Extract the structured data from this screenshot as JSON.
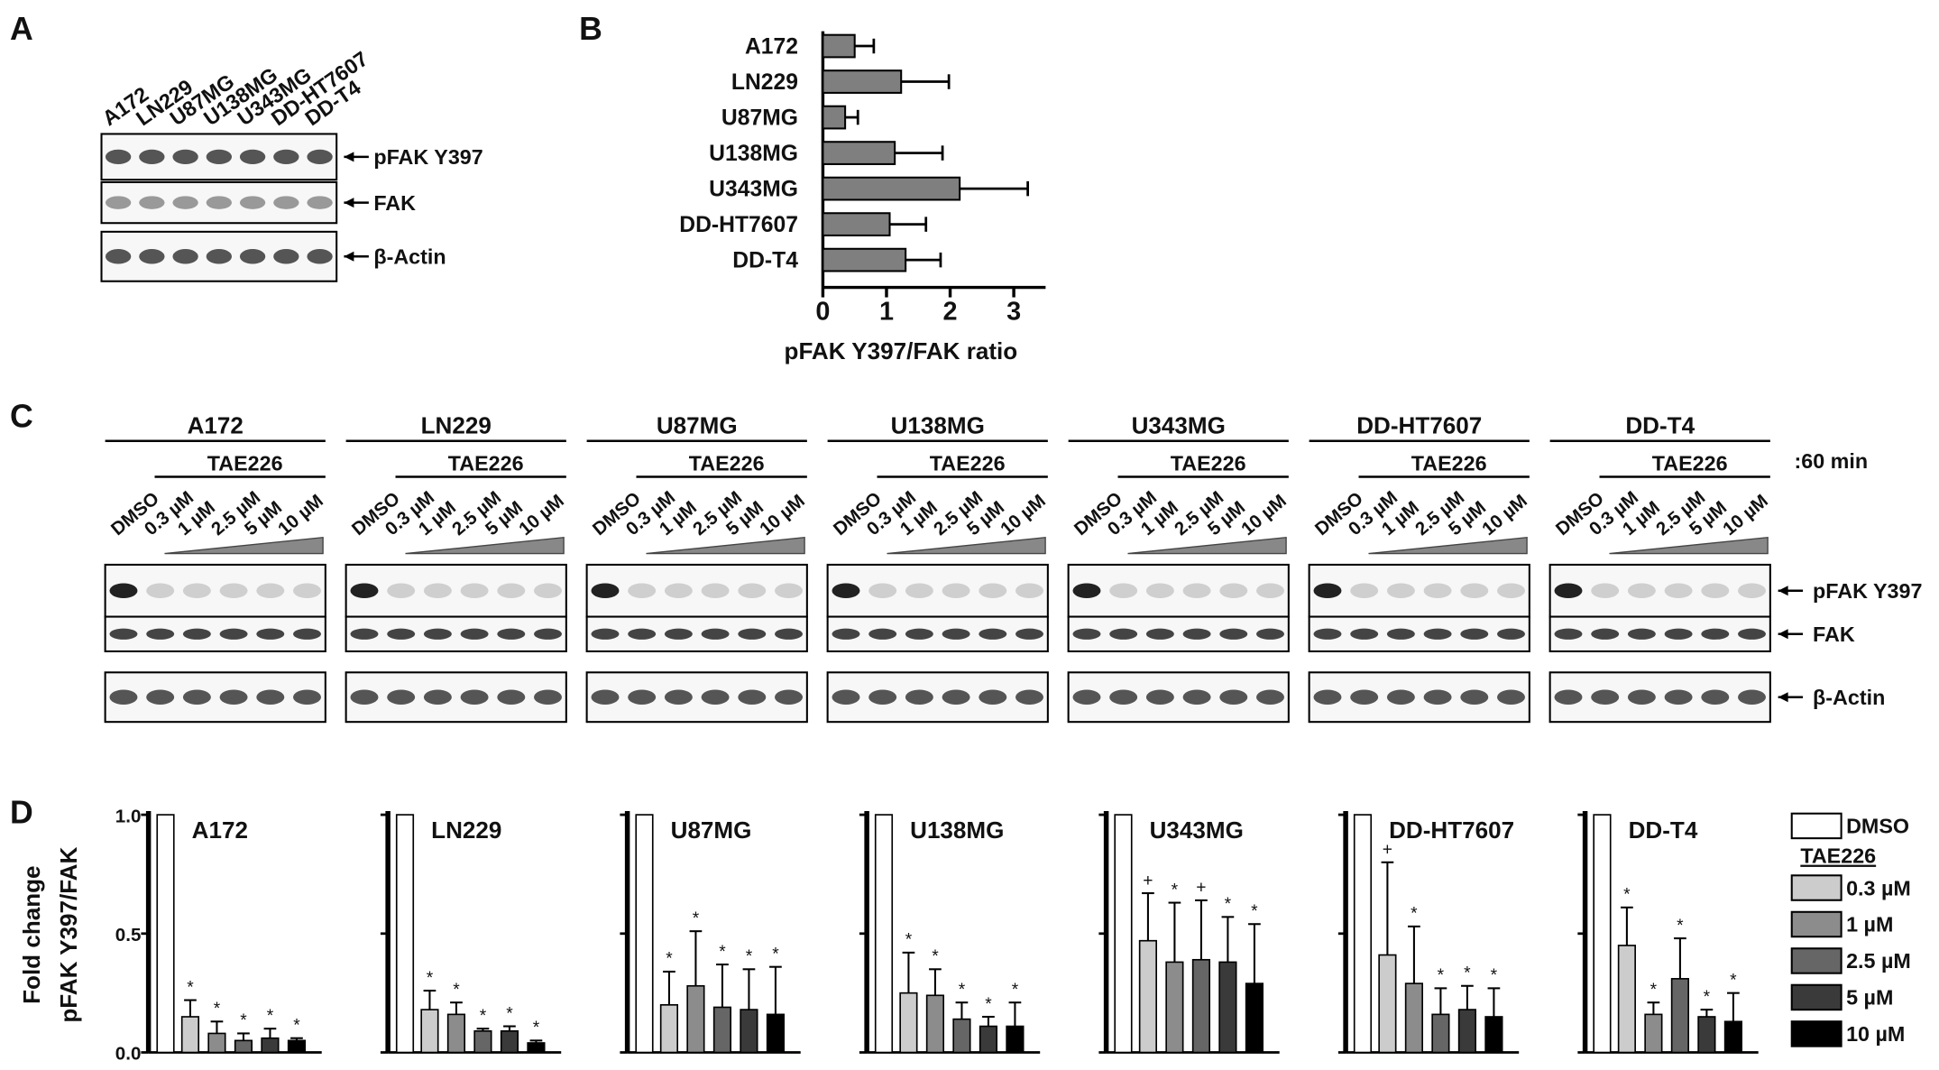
{
  "panel_labels": [
    "A",
    "B",
    "C",
    "D"
  ],
  "panel_a": {
    "cell_lines": [
      "A172",
      "LN229",
      "U87MG",
      "U138MG",
      "U343MG",
      "DD-HT7607",
      "DD-T4"
    ],
    "bands": [
      "pFAK Y397",
      "FAK",
      "β-Actin"
    ]
  },
  "panel_c": {
    "cell_lines": [
      "A172",
      "LN229",
      "U87MG",
      "U138MG",
      "U343MG",
      "DD-HT7607",
      "DD-T4"
    ],
    "treatment": "TAE226",
    "lanes": [
      "DMSO",
      "0.3 µM",
      "1 µM",
      "2.5 µM",
      "5 µM",
      "10 µM"
    ],
    "time": ":60 min",
    "bands": [
      "pFAK Y397",
      "FAK",
      "β-Actin"
    ]
  },
  "panel_d": {
    "ylabel": [
      "Fold change",
      "pFAK Y397/FAK"
    ],
    "ylim": [
      0,
      1
    ],
    "yticks": [
      {
        "value": 0,
        "label": "0.0"
      },
      {
        "value": 0.5,
        "label": "0.5"
      },
      {
        "value": 1,
        "label": "1.0"
      }
    ],
    "treatment": "TAE226",
    "series": [
      {
        "name": "DMSO",
        "color": "#ffffff"
      },
      {
        "name": "0.3 µM",
        "color": "#cccccc"
      },
      {
        "name": "1 µM",
        "color": "#8c8c8c"
      },
      {
        "name": "2.5 µM",
        "color": "#666666"
      },
      {
        "name": "5 µM",
        "color": "#3a3a3a"
      },
      {
        "name": "10 µM",
        "color": "#000000"
      }
    ]
  },
  "chart_data": [
    {
      "type": "hbar",
      "categories": [
        "A172",
        "LN229",
        "U87MG",
        "U138MG",
        "U343MG",
        "DD-HT7607",
        "DD-T4"
      ],
      "values": [
        0.5,
        1.23,
        0.35,
        1.13,
        2.15,
        1.05,
        1.3
      ],
      "errors": [
        0.3,
        0.75,
        0.2,
        0.75,
        1.07,
        0.57,
        0.55
      ],
      "color": "#7f7f7f",
      "xlim": [
        0,
        3.5
      ],
      "xticks": [
        0,
        1,
        2,
        3
      ],
      "xlabel": "pFAK Y397/FAK ratio"
    },
    {
      "type": "bar",
      "title": "A172",
      "values": [
        1,
        0.15,
        0.08,
        0.05,
        0.06,
        0.05
      ],
      "errors": [
        0,
        0.07,
        0.05,
        0.03,
        0.04,
        0.01
      ],
      "annotations": [
        null,
        "*",
        "*",
        "*",
        "*",
        "*"
      ]
    },
    {
      "type": "bar",
      "title": "LN229",
      "values": [
        1,
        0.18,
        0.16,
        0.09,
        0.09,
        0.04
      ],
      "errors": [
        0,
        0.08,
        0.05,
        0.01,
        0.02,
        0.01
      ],
      "annotations": [
        null,
        "*",
        "*",
        "*",
        "*",
        "*"
      ]
    },
    {
      "type": "bar",
      "title": "U87MG",
      "values": [
        1,
        0.2,
        0.28,
        0.19,
        0.18,
        0.16
      ],
      "errors": [
        0,
        0.14,
        0.23,
        0.18,
        0.17,
        0.2
      ],
      "annotations": [
        null,
        "*",
        "*",
        "*",
        "*",
        "*"
      ]
    },
    {
      "type": "bar",
      "title": "U138MG",
      "values": [
        1,
        0.25,
        0.24,
        0.14,
        0.11,
        0.11
      ],
      "errors": [
        0,
        0.17,
        0.11,
        0.07,
        0.04,
        0.1
      ],
      "annotations": [
        null,
        "*",
        "*",
        "*",
        "*",
        "*"
      ]
    },
    {
      "type": "bar",
      "title": "U343MG",
      "values": [
        1,
        0.47,
        0.38,
        0.39,
        0.38,
        0.29
      ],
      "errors": [
        0,
        0.2,
        0.25,
        0.25,
        0.19,
        0.25
      ],
      "annotations": [
        null,
        "+",
        "*",
        "+",
        "*",
        "*"
      ]
    },
    {
      "type": "bar",
      "title": "DD-HT7607",
      "values": [
        1,
        0.41,
        0.29,
        0.16,
        0.18,
        0.15
      ],
      "errors": [
        0,
        0.39,
        0.24,
        0.11,
        0.1,
        0.12
      ],
      "annotations": [
        null,
        "+",
        "*",
        "*",
        "*",
        "*"
      ]
    },
    {
      "type": "bar",
      "title": "DD-T4",
      "values": [
        1,
        0.45,
        0.16,
        0.31,
        0.15,
        0.13
      ],
      "errors": [
        0,
        0.16,
        0.05,
        0.17,
        0.03,
        0.12
      ],
      "annotations": [
        null,
        "*",
        "*",
        "*",
        "*",
        "*"
      ]
    }
  ]
}
